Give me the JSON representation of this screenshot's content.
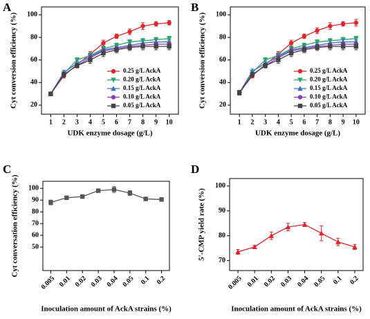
{
  "chart_data": [
    {
      "type": "line",
      "title": "A",
      "x_label": "UDK enzyme dosage (g/L)",
      "y_label": "Cyt conversion efficiency (%)",
      "x": [
        1,
        2,
        3,
        4,
        5,
        6,
        7,
        8,
        9,
        10
      ],
      "xlim": [
        0.3,
        10.7
      ],
      "xticks": [
        1,
        2,
        3,
        4,
        5,
        6,
        7,
        8,
        9,
        10
      ],
      "ylim": [
        12,
        107
      ],
      "yticks": [
        20,
        40,
        60,
        80,
        100
      ],
      "legend": "lower-right",
      "series": [
        {
          "name": "0.25 g/L AckA",
          "color": "#e0262b",
          "marker": "circle",
          "values": [
            30,
            46,
            56,
            65,
            75,
            81,
            85,
            90,
            92,
            93
          ],
          "errors": [
            1.5,
            2,
            2,
            2.5,
            2.5,
            2,
            2.5,
            3,
            2,
            2
          ]
        },
        {
          "name": "0.20 g/L AckA",
          "color": "#2aa86a",
          "marker": "triangle-down",
          "values": [
            30,
            48,
            60,
            64,
            70,
            73,
            76,
            77,
            78,
            79
          ],
          "errors": [
            1.5,
            2,
            2,
            2.5,
            2,
            2,
            2,
            2,
            2,
            2
          ]
        },
        {
          "name": "0.15 g/L AckA",
          "color": "#3b6fc4",
          "marker": "triangle-up",
          "values": [
            30,
            49,
            57,
            63,
            69,
            71,
            73,
            75,
            76,
            76
          ],
          "errors": [
            1.5,
            2,
            2,
            2.5,
            2,
            2,
            2,
            2,
            2,
            2
          ]
        },
        {
          "name": "0.10 g/L AckA",
          "color": "#8a3fb8",
          "marker": "circle",
          "values": [
            30,
            47,
            55,
            62,
            68,
            70,
            72,
            73,
            74,
            74
          ],
          "errors": [
            1.5,
            2,
            2,
            2.5,
            2,
            2,
            2,
            2,
            2,
            2
          ]
        },
        {
          "name": "0.05 g/L AckA",
          "color": "#444444",
          "marker": "square",
          "values": [
            30,
            47,
            55,
            60,
            66,
            69,
            71,
            72,
            72,
            72
          ],
          "errors": [
            1.5,
            2,
            2,
            3,
            3,
            2.5,
            2.5,
            3,
            3,
            3
          ]
        }
      ]
    },
    {
      "type": "line",
      "title": "B",
      "x_label": "UDK enzyme dosage (g/L)",
      "y_label": "Cyt conversion efficiency (%)",
      "x": [
        1,
        2,
        3,
        4,
        5,
        6,
        7,
        8,
        9,
        10
      ],
      "xlim": [
        0.3,
        10.7
      ],
      "xticks": [
        1,
        2,
        3,
        4,
        5,
        6,
        7,
        8,
        9,
        10
      ],
      "ylim": [
        12,
        107
      ],
      "yticks": [
        20,
        40,
        60,
        80,
        100
      ],
      "legend": "lower-right",
      "series": [
        {
          "name": "0.25 g/L AckA",
          "color": "#e0262b",
          "marker": "circle",
          "values": [
            31,
            46,
            56,
            65,
            75,
            81,
            86,
            90,
            92,
            93
          ],
          "errors": [
            2,
            2,
            2,
            2.5,
            2.5,
            2,
            2.5,
            3,
            2,
            3
          ]
        },
        {
          "name": "0.20 g/L AckA",
          "color": "#2aa86a",
          "marker": "triangle-down",
          "values": [
            31,
            49,
            60,
            64,
            70,
            73,
            76,
            77,
            78,
            79
          ],
          "errors": [
            2,
            2,
            2,
            2.5,
            2,
            2,
            2,
            2,
            2,
            2
          ]
        },
        {
          "name": "0.15 g/L AckA",
          "color": "#3b6fc4",
          "marker": "triangle-up",
          "values": [
            31,
            50,
            57,
            63,
            69,
            71,
            73,
            75,
            76,
            76
          ],
          "errors": [
            2,
            2,
            2,
            2.5,
            2,
            2,
            2,
            2,
            2,
            2
          ]
        },
        {
          "name": "0.10 g/L AckA",
          "color": "#8a3fb8",
          "marker": "circle",
          "values": [
            31,
            47,
            55,
            62,
            68,
            70,
            72,
            73,
            74,
            74
          ],
          "errors": [
            2,
            2,
            2,
            2.5,
            2,
            2,
            2,
            2,
            2,
            2
          ]
        },
        {
          "name": "0.05 g/L AckA",
          "color": "#444444",
          "marker": "square",
          "values": [
            31,
            47,
            55,
            60,
            66,
            69,
            71,
            72,
            72,
            72
          ],
          "errors": [
            2,
            2,
            2,
            3,
            3,
            2.5,
            2.5,
            3,
            3,
            3
          ]
        }
      ]
    },
    {
      "type": "line",
      "title": "C",
      "x_label": "Inoculation amount of AckA strains (%)",
      "y_label": "Cyt conversation efficiency (%)",
      "categories": [
        "0.005",
        "0.01",
        "0.02",
        "0.03",
        "0.04",
        "0.05",
        "0.1",
        "0.2"
      ],
      "ylim": [
        30,
        106
      ],
      "yticks": [
        50,
        60,
        70,
        80,
        90,
        100
      ],
      "series": [
        {
          "color": "#555555",
          "marker": "square",
          "values": [
            88,
            92,
            93,
            98,
            99,
            96,
            91,
            90.5
          ],
          "errors": [
            2,
            1.5,
            1.2,
            1,
            2.5,
            2,
            1.2,
            0.8
          ]
        }
      ]
    },
    {
      "type": "line",
      "title": "D",
      "x_label": "Inoculation amount of AckA strains (%)",
      "y_label": "5'-CMP yield rate (%)",
      "categories": [
        "0.005",
        "0.01",
        "0.02",
        "0.03",
        "0.04",
        "0.05",
        "0.1",
        "0.2"
      ],
      "ylim": [
        66,
        103
      ],
      "yticks": [
        70,
        80,
        90,
        100
      ],
      "series": [
        {
          "color": "#e0262b",
          "marker": "triangle-up",
          "values": [
            73.5,
            75.5,
            80,
            83.5,
            84.5,
            81,
            77.5,
            75.5
          ],
          "errors": [
            1,
            0.6,
            1.5,
            1.5,
            0.8,
            3,
            1.5,
            1
          ]
        }
      ]
    }
  ]
}
